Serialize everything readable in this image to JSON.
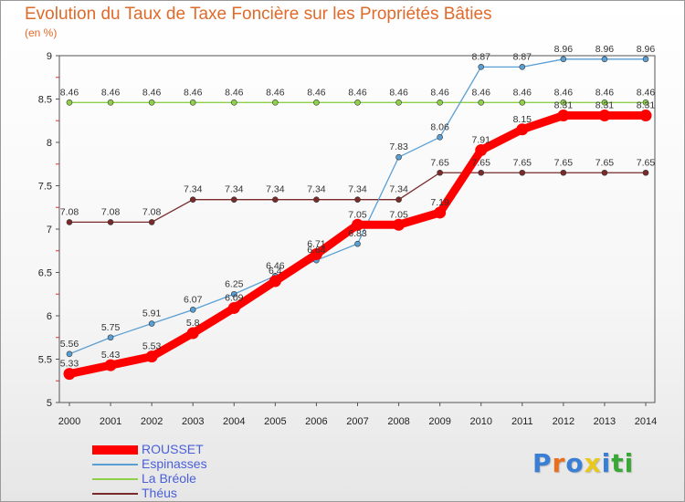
{
  "page": {
    "title": "Evolution du Taux de Taxe Foncière sur les Propriétés Bâties",
    "unit": "(en %)",
    "logo": "Proxiti"
  },
  "colors": {
    "title": "#e06a2a",
    "logo": [
      "#3a7fd4",
      "#e8701c",
      "#3a7fd4",
      "#e8c81c",
      "#3a7fd4",
      "#3aa836",
      "#3aa836"
    ]
  },
  "chart_data": {
    "type": "line",
    "title": "Evolution du Taux de Taxe Foncière sur les Propriétés Bâties",
    "ylabel": "(en %)",
    "xlabel": "",
    "x": [
      "2000",
      "2001",
      "2002",
      "2003",
      "2004",
      "2005",
      "2006",
      "2007",
      "2008",
      "2009",
      "2010",
      "2011",
      "2012",
      "2013",
      "2014"
    ],
    "yticks": [
      "5",
      "5.5",
      "6",
      "6.5",
      "7",
      "7.5",
      "8",
      "8.5",
      "9"
    ],
    "ylim": [
      5,
      9
    ],
    "grid": false,
    "series": [
      {
        "name": "ROUSSET",
        "color": "#ff0000",
        "values": [
          5.33,
          5.43,
          5.53,
          5.8,
          6.09,
          6.4,
          6.71,
          7.05,
          7.05,
          7.19,
          7.91,
          8.15,
          8.31,
          8.31,
          8.31
        ],
        "labels": [
          "5.33",
          "5.43",
          "5.53",
          "5.8",
          "6.09",
          "6.4",
          "6.71",
          "7.05",
          "7.05",
          "7.19",
          "7.91",
          "8.15",
          "8.31",
          "8.31",
          "8.31"
        ]
      },
      {
        "name": "Espinasses",
        "color": "#5a9fd4",
        "values": [
          5.56,
          5.75,
          5.91,
          6.07,
          6.25,
          6.46,
          6.64,
          6.83,
          7.83,
          8.06,
          8.87,
          8.87,
          8.96,
          8.96,
          8.96
        ],
        "labels": [
          "5.56",
          "5.75",
          "5.91",
          "6.07",
          "6.25",
          "6.46",
          "6.64",
          "6.83",
          "7.83",
          "8.06",
          "8.87",
          "8.87",
          "8.96",
          "8.96",
          "8.96"
        ]
      },
      {
        "name": "La Bréole",
        "color": "#8ed04a",
        "values": [
          8.46,
          8.46,
          8.46,
          8.46,
          8.46,
          8.46,
          8.46,
          8.46,
          8.46,
          8.46,
          8.46,
          8.46,
          8.46,
          8.46,
          8.46
        ],
        "labels": [
          "8.46",
          "8.46",
          "8.46",
          "8.46",
          "8.46",
          "8.46",
          "8.46",
          "8.46",
          "8.46",
          "8.46",
          "8.46",
          "8.46",
          "8.46",
          "8.46",
          "8.46"
        ]
      },
      {
        "name": "Théus",
        "color": "#7a2a2a",
        "values": [
          7.08,
          7.08,
          7.08,
          7.34,
          7.34,
          7.34,
          7.34,
          7.34,
          7.34,
          7.65,
          7.65,
          7.65,
          7.65,
          7.65,
          7.65
        ],
        "labels": [
          "7.08",
          "7.08",
          "7.08",
          "7.34",
          "7.34",
          "7.34",
          "7.34",
          "7.34",
          "7.34",
          "7.65",
          "7.65",
          "7.65",
          "7.65",
          "7.65",
          "7.65"
        ]
      }
    ],
    "legend": {
      "position": "bottom-left",
      "entries": [
        "ROUSSET",
        "Espinasses",
        "La Bréole",
        "Théus"
      ]
    }
  }
}
